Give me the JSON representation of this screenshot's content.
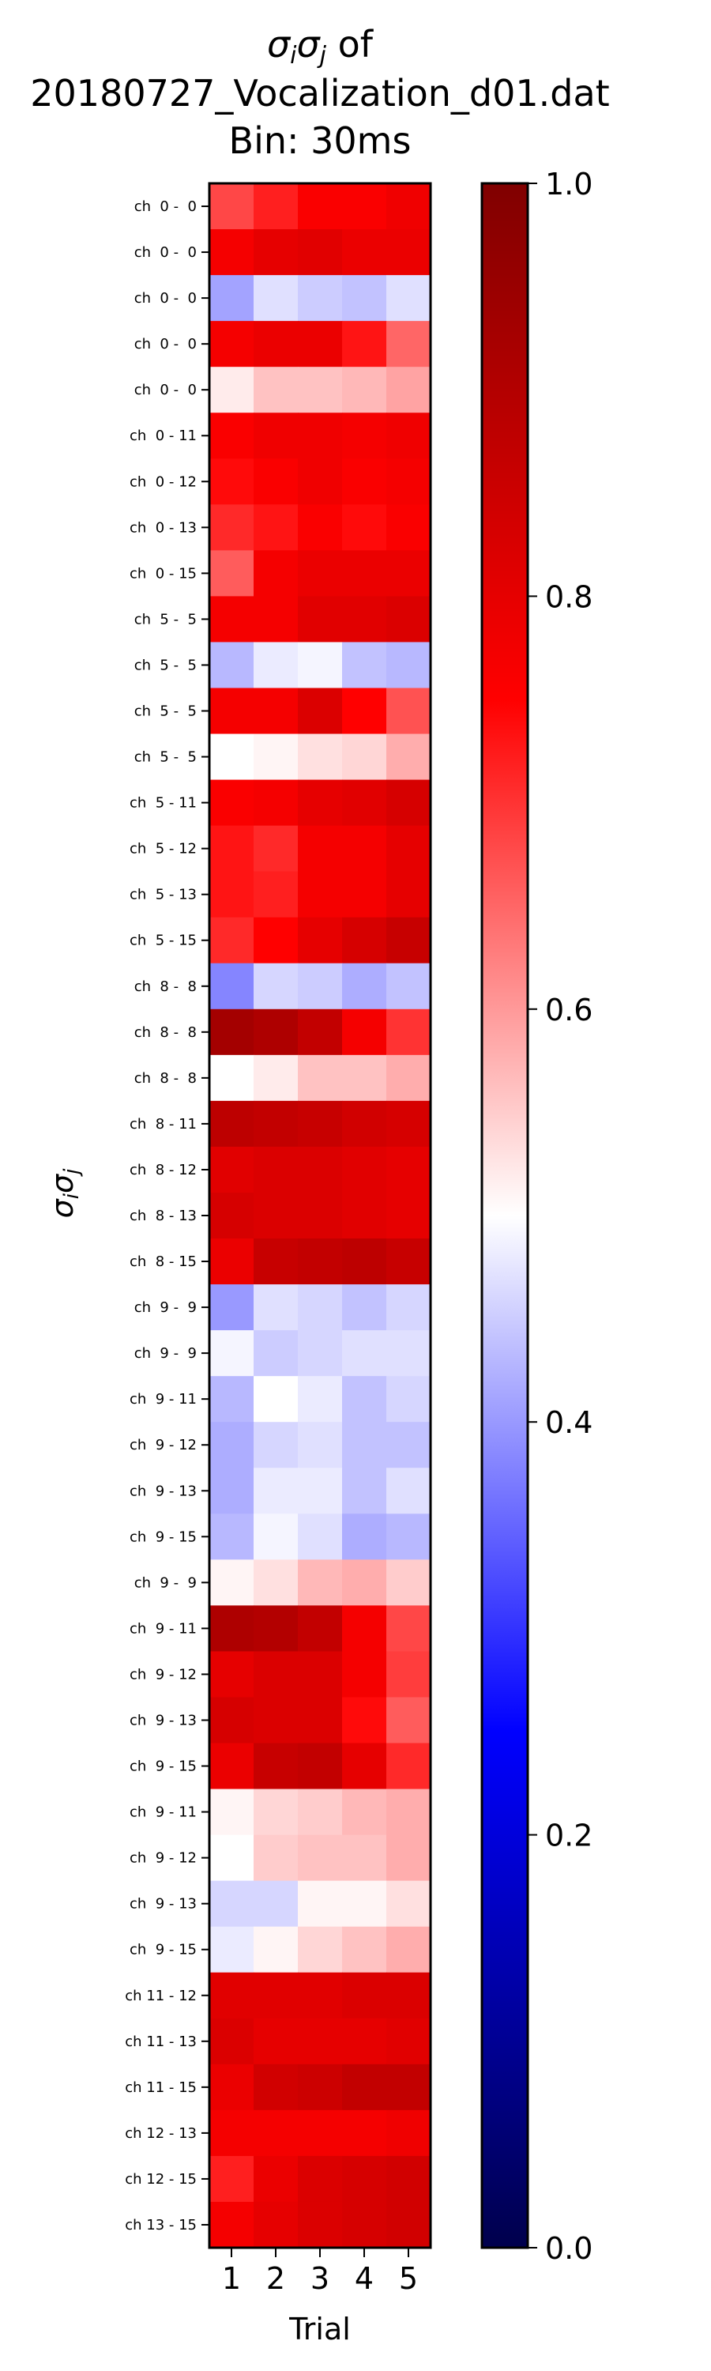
{
  "chart_data": {
    "type": "heatmap",
    "title_lines": [
      "σiσj of",
      "20180727_Vocalization_d01.dat",
      "Bin: 30ms"
    ],
    "xlabel": "Trial",
    "ylabel": "σiσj",
    "x": [
      "1",
      "2",
      "3",
      "4",
      "5"
    ],
    "colorbar": {
      "colormap": "seismic",
      "range": [
        0.0,
        1.0
      ],
      "ticks": [
        "0.0",
        "0.2",
        "0.4",
        "0.6",
        "0.8",
        "1.0"
      ]
    },
    "rows": [
      {
        "label": "ch  0 -  0",
        "values": [
          0.68,
          0.72,
          0.76,
          0.76,
          0.78
        ]
      },
      {
        "label": "ch  0 -  0",
        "values": [
          0.77,
          0.8,
          0.81,
          0.79,
          0.79
        ]
      },
      {
        "label": "ch  0 -  0",
        "values": [
          0.41,
          0.47,
          0.45,
          0.44,
          0.47
        ]
      },
      {
        "label": "ch  0 -  0",
        "values": [
          0.77,
          0.79,
          0.79,
          0.73,
          0.65
        ]
      },
      {
        "label": "ch  0 -  0",
        "values": [
          0.52,
          0.56,
          0.56,
          0.57,
          0.59
        ]
      },
      {
        "label": "ch  0 - 11",
        "values": [
          0.76,
          0.78,
          0.78,
          0.77,
          0.78
        ]
      },
      {
        "label": "ch  0 - 12",
        "values": [
          0.74,
          0.76,
          0.78,
          0.76,
          0.77
        ]
      },
      {
        "label": "ch  0 - 13",
        "values": [
          0.71,
          0.73,
          0.76,
          0.74,
          0.76
        ]
      },
      {
        "label": "ch  0 - 15",
        "values": [
          0.66,
          0.77,
          0.79,
          0.79,
          0.79
        ]
      },
      {
        "label": "ch  5 -  5",
        "values": [
          0.77,
          0.77,
          0.81,
          0.81,
          0.82
        ]
      },
      {
        "label": "ch  5 -  5",
        "values": [
          0.43,
          0.48,
          0.49,
          0.44,
          0.43
        ]
      },
      {
        "label": "ch  5 -  5",
        "values": [
          0.77,
          0.77,
          0.82,
          0.75,
          0.67
        ]
      },
      {
        "label": "ch  5 -  5",
        "values": [
          0.5,
          0.51,
          0.53,
          0.54,
          0.58
        ]
      },
      {
        "label": "ch  5 - 11",
        "values": [
          0.76,
          0.77,
          0.8,
          0.81,
          0.83
        ]
      },
      {
        "label": "ch  5 - 12",
        "values": [
          0.73,
          0.71,
          0.77,
          0.77,
          0.8
        ]
      },
      {
        "label": "ch  5 - 13",
        "values": [
          0.73,
          0.72,
          0.77,
          0.77,
          0.8
        ]
      },
      {
        "label": "ch  5 - 15",
        "values": [
          0.71,
          0.75,
          0.8,
          0.83,
          0.86
        ]
      },
      {
        "label": "ch  8 -  8",
        "values": [
          0.38,
          0.46,
          0.45,
          0.42,
          0.44
        ]
      },
      {
        "label": "ch  8 -  8",
        "values": [
          0.93,
          0.91,
          0.87,
          0.77,
          0.7
        ]
      },
      {
        "label": "ch  8 -  8",
        "values": [
          0.5,
          0.52,
          0.56,
          0.56,
          0.58
        ]
      },
      {
        "label": "ch  8 - 11",
        "values": [
          0.88,
          0.87,
          0.86,
          0.84,
          0.83
        ]
      },
      {
        "label": "ch  8 - 12",
        "values": [
          0.81,
          0.82,
          0.82,
          0.81,
          0.8
        ]
      },
      {
        "label": "ch  8 - 13",
        "values": [
          0.83,
          0.82,
          0.82,
          0.81,
          0.8
        ]
      },
      {
        "label": "ch  8 - 15",
        "values": [
          0.79,
          0.86,
          0.87,
          0.88,
          0.86
        ]
      },
      {
        "label": "ch  9 -  9",
        "values": [
          0.4,
          0.47,
          0.46,
          0.44,
          0.46
        ]
      },
      {
        "label": "ch  9 -  9",
        "values": [
          0.49,
          0.45,
          0.46,
          0.47,
          0.47
        ]
      },
      {
        "label": "ch  9 - 11",
        "values": [
          0.43,
          0.5,
          0.48,
          0.44,
          0.46
        ]
      },
      {
        "label": "ch  9 - 12",
        "values": [
          0.42,
          0.46,
          0.47,
          0.44,
          0.44
        ]
      },
      {
        "label": "ch  9 - 13",
        "values": [
          0.42,
          0.48,
          0.48,
          0.44,
          0.47
        ]
      },
      {
        "label": "ch  9 - 15",
        "values": [
          0.43,
          0.49,
          0.47,
          0.42,
          0.43
        ]
      },
      {
        "label": "ch  9 -  9",
        "values": [
          0.51,
          0.53,
          0.57,
          0.58,
          0.55
        ]
      },
      {
        "label": "ch  9 - 11",
        "values": [
          0.91,
          0.9,
          0.87,
          0.77,
          0.68
        ]
      },
      {
        "label": "ch  9 - 12",
        "values": [
          0.8,
          0.82,
          0.82,
          0.77,
          0.69
        ]
      },
      {
        "label": "ch  9 - 13",
        "values": [
          0.83,
          0.82,
          0.82,
          0.74,
          0.66
        ]
      },
      {
        "label": "ch  9 - 15",
        "values": [
          0.79,
          0.86,
          0.87,
          0.8,
          0.71
        ]
      },
      {
        "label": "ch  9 - 11",
        "values": [
          0.51,
          0.54,
          0.55,
          0.57,
          0.58
        ]
      },
      {
        "label": "ch  9 - 12",
        "values": [
          0.5,
          0.55,
          0.56,
          0.56,
          0.58
        ]
      },
      {
        "label": "ch  9 - 13",
        "values": [
          0.46,
          0.46,
          0.51,
          0.51,
          0.53
        ]
      },
      {
        "label": "ch  9 - 15",
        "values": [
          0.48,
          0.51,
          0.54,
          0.56,
          0.58
        ]
      },
      {
        "label": "ch 11 - 12",
        "values": [
          0.81,
          0.81,
          0.81,
          0.82,
          0.82
        ]
      },
      {
        "label": "ch 11 - 13",
        "values": [
          0.82,
          0.8,
          0.8,
          0.8,
          0.81
        ]
      },
      {
        "label": "ch 11 - 15",
        "values": [
          0.79,
          0.84,
          0.85,
          0.87,
          0.87
        ]
      },
      {
        "label": "ch 12 - 13",
        "values": [
          0.77,
          0.77,
          0.77,
          0.77,
          0.78
        ]
      },
      {
        "label": "ch 12 - 15",
        "values": [
          0.72,
          0.79,
          0.82,
          0.83,
          0.84
        ]
      },
      {
        "label": "ch 13 - 15",
        "values": [
          0.77,
          0.8,
          0.82,
          0.83,
          0.84
        ]
      }
    ]
  }
}
